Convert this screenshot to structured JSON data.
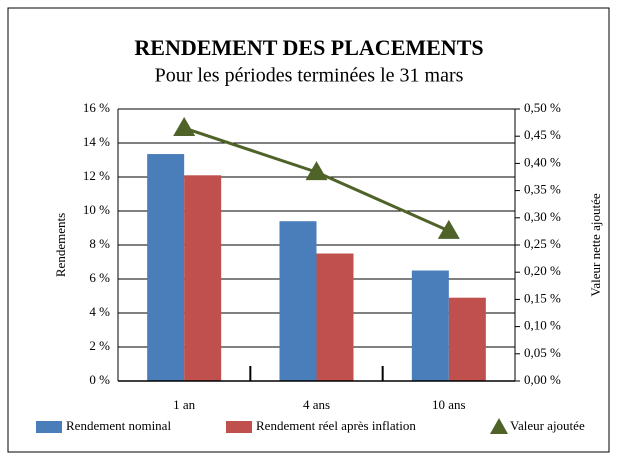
{
  "chart_data": {
    "type": "bar",
    "title": "RENDEMENT DES PLACEMENTS",
    "subtitle": "Pour les périodes terminées le 31 mars",
    "y_label": "Rendements",
    "y2_label": "Valeur nette ajoutée",
    "categories": [
      "1 an",
      "4 ans",
      "10 ans"
    ],
    "series": [
      {
        "name": "Rendement nominal",
        "color": "#4a7ebb",
        "values": [
          13.35,
          9.4,
          6.5
        ]
      },
      {
        "name": "Rendement réel après inflation",
        "color": "#c0504d",
        "values": [
          12.1,
          7.5,
          4.9
        ]
      },
      {
        "name": "Valeur ajoutée",
        "color": "#4f6228",
        "type": "line",
        "axis": "y2",
        "values": [
          0.465,
          0.384,
          0.276
        ]
      }
    ],
    "ylim": [
      0,
      16
    ],
    "yticks": [
      {
        "value": 0,
        "label": "0 %"
      },
      {
        "value": 2,
        "label": "2 %"
      },
      {
        "value": 4,
        "label": "4 %"
      },
      {
        "value": 6,
        "label": "6 %"
      },
      {
        "value": 8,
        "label": "8 %"
      },
      {
        "value": 10,
        "label": "10 %"
      },
      {
        "value": 12,
        "label": "12 %"
      },
      {
        "value": 14,
        "label": "14 %"
      },
      {
        "value": 16,
        "label": "16 %"
      }
    ],
    "y2lim": [
      0,
      0.5
    ],
    "y2ticks": [
      {
        "value": 0,
        "label": "0,00 %"
      },
      {
        "value": 0.05,
        "label": "0,05 %"
      },
      {
        "value": 0.1,
        "label": "0,10 %"
      },
      {
        "value": 0.15,
        "label": "0,15 %"
      },
      {
        "value": 0.2,
        "label": "0,20 %"
      },
      {
        "value": 0.25,
        "label": "0,25 %"
      },
      {
        "value": 0.3,
        "label": "0,30 %"
      },
      {
        "value": 0.35,
        "label": "0,35 %"
      },
      {
        "value": 0.4,
        "label": "0,40 %"
      },
      {
        "value": 0.45,
        "label": "0,45 %"
      },
      {
        "value": 0.5,
        "label": "0,50 %"
      }
    ],
    "grid": true,
    "legend": "bottom"
  }
}
